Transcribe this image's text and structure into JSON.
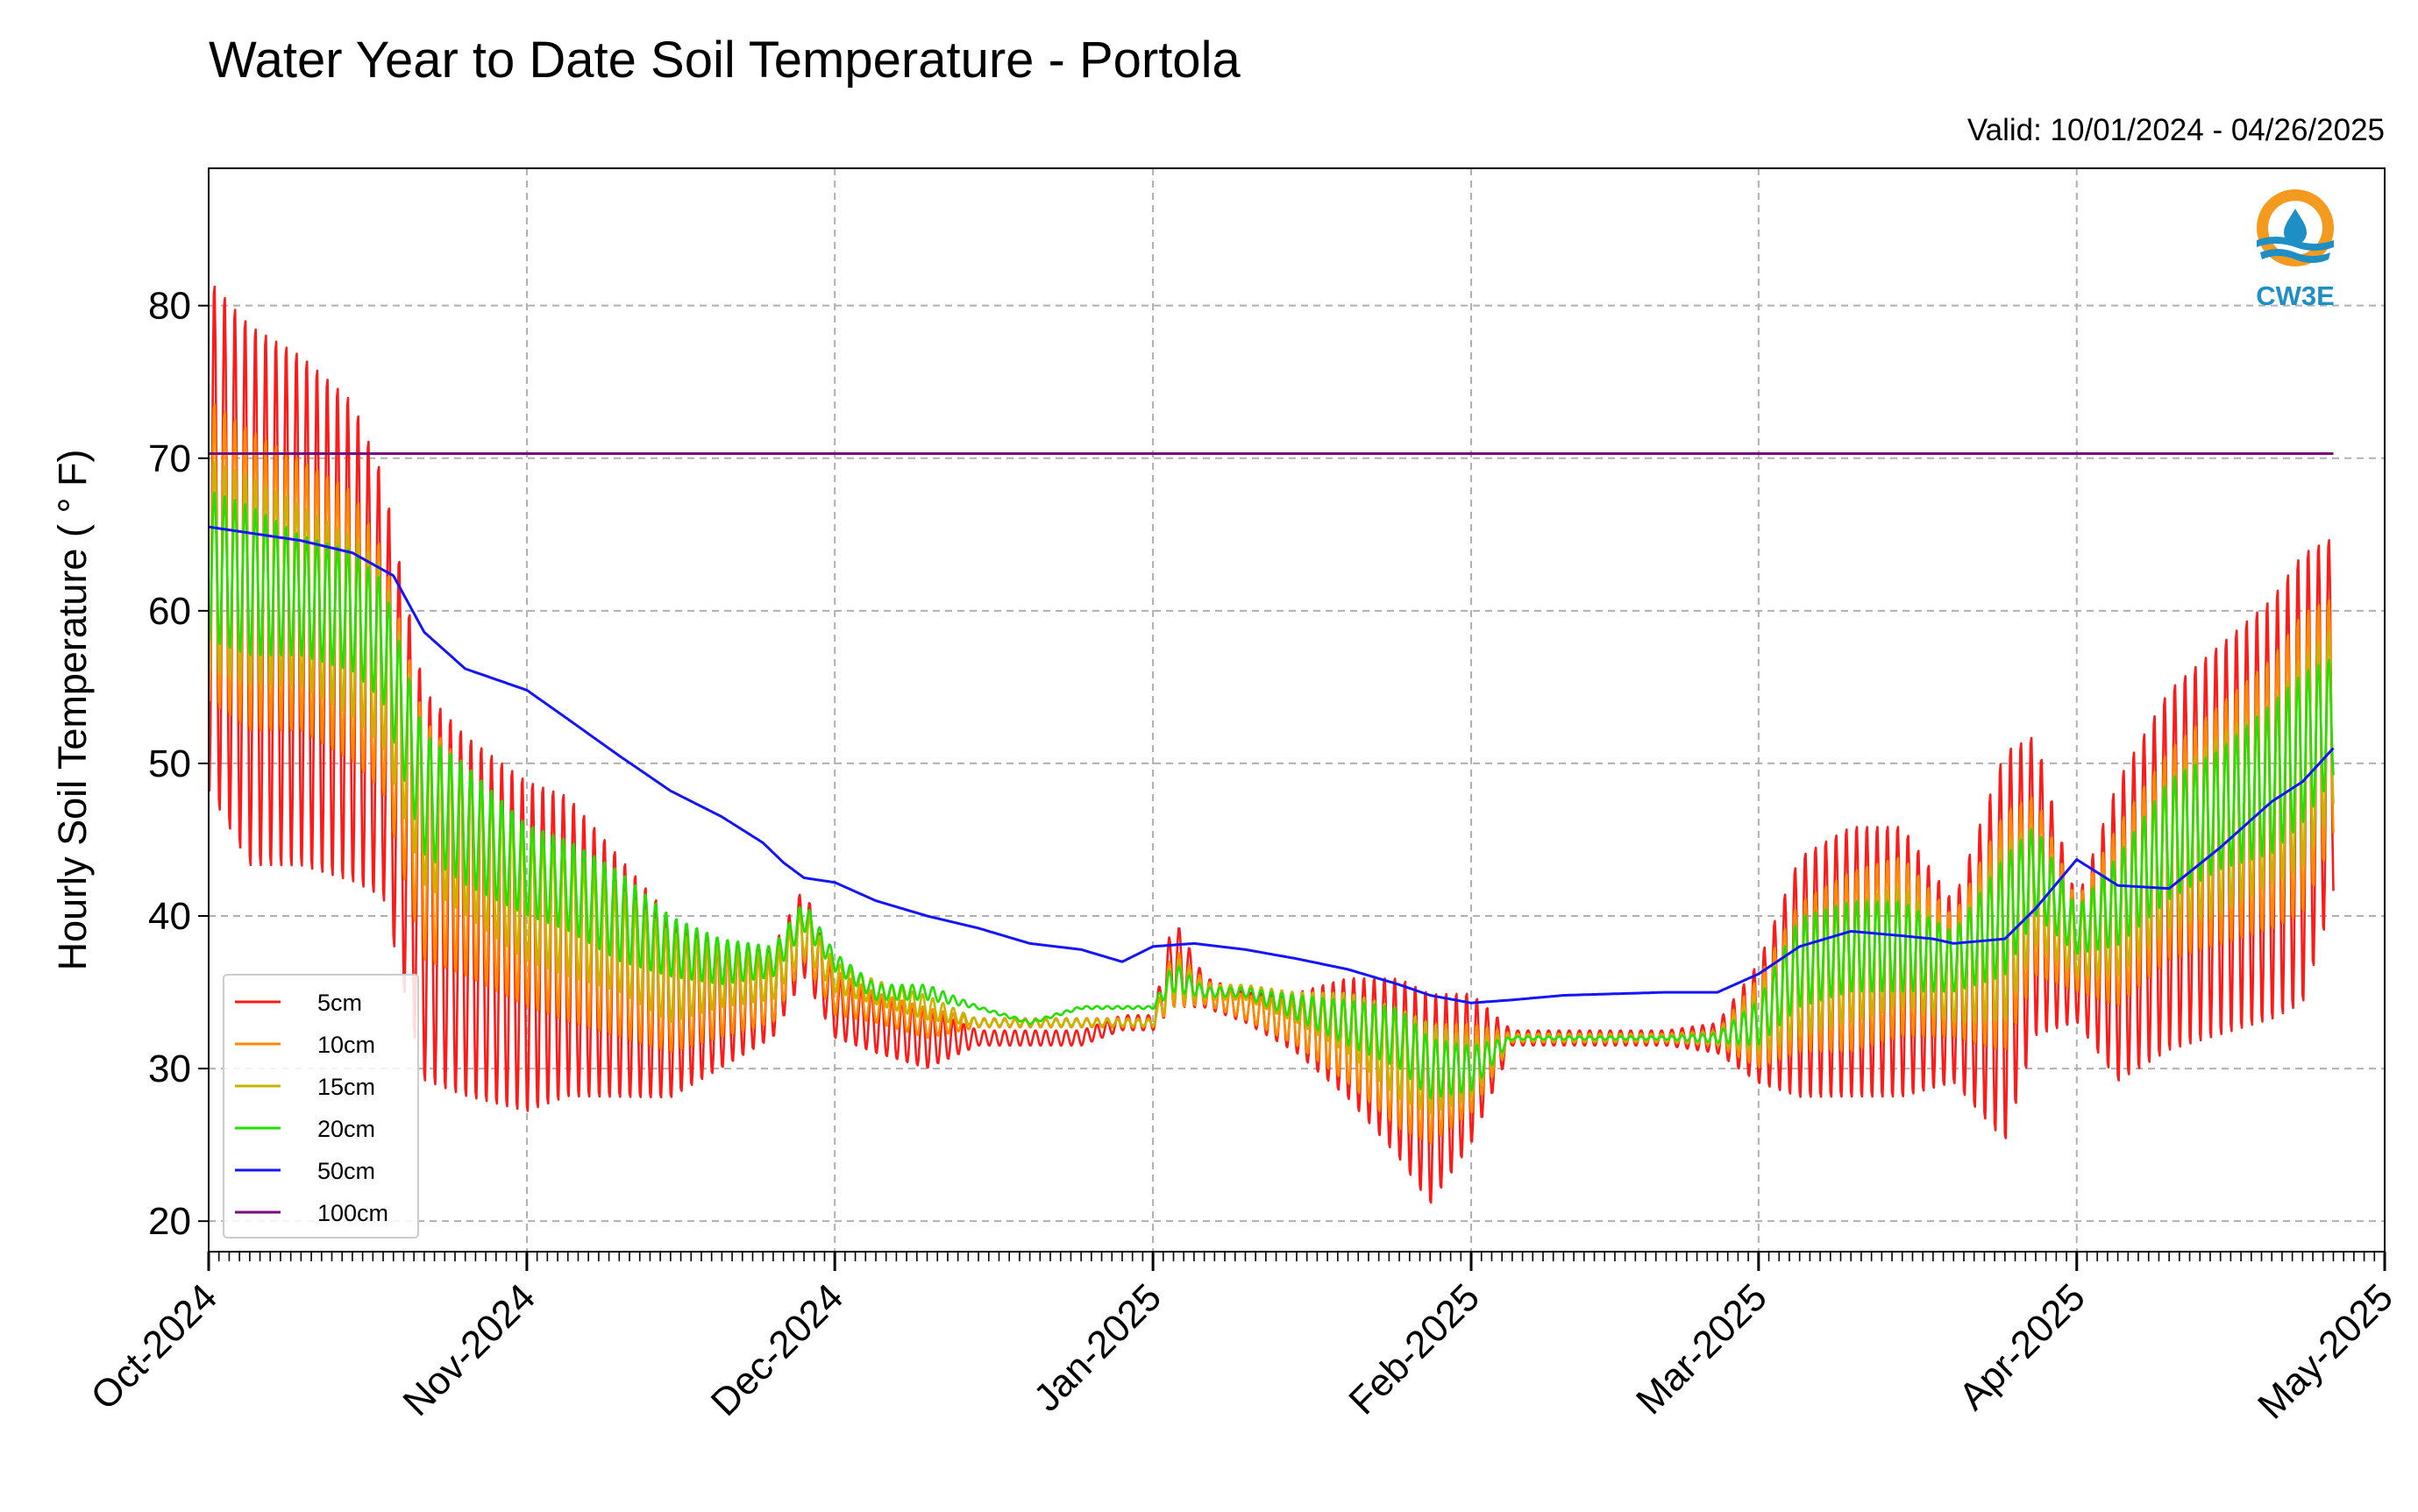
{
  "chart_data": {
    "type": "line",
    "title": "Water Year to Date Soil Temperature - Portola",
    "subtitle": "Valid: 10/01/2024 - 04/26/2025",
    "ylabel": "Hourly Soil Temperature ( ° F)",
    "xlabel": "",
    "ylim": [
      18,
      89
    ],
    "yticks": [
      20,
      30,
      40,
      50,
      60,
      70,
      80
    ],
    "xlim": [
      "2024-10-01",
      "2025-05-01"
    ],
    "xtick_labels": [
      "Oct-2024",
      "Nov-2024",
      "Dec-2024",
      "Jan-2025",
      "Feb-2025",
      "Mar-2025",
      "Apr-2025",
      "May-2025"
    ],
    "xtick_dates": [
      "2024-10-01",
      "2024-11-01",
      "2024-12-01",
      "2025-01-01",
      "2025-02-01",
      "2025-03-01",
      "2025-04-01",
      "2025-05-01"
    ],
    "grid": true,
    "legend_position": "lower-left",
    "series": [
      {
        "name": "5cm",
        "color": "#ff1a1a",
        "x": [
          "2024-10-01",
          "2024-10-05",
          "2024-10-10",
          "2024-10-15",
          "2024-10-18",
          "2024-10-22",
          "2024-10-26",
          "2024-11-01",
          "2024-11-05",
          "2024-11-10",
          "2024-11-15",
          "2024-11-20",
          "2024-11-25",
          "2024-11-28",
          "2024-12-01",
          "2024-12-05",
          "2024-12-10",
          "2024-12-15",
          "2024-12-20",
          "2024-12-25",
          "2024-12-29",
          "2025-01-01",
          "2025-01-03",
          "2025-01-06",
          "2025-01-10",
          "2025-01-15",
          "2025-01-20",
          "2025-01-25",
          "2025-01-28",
          "2025-02-01",
          "2025-02-05",
          "2025-02-10",
          "2025-02-15",
          "2025-02-20",
          "2025-02-25",
          "2025-03-01",
          "2025-03-05",
          "2025-03-10",
          "2025-03-15",
          "2025-03-20",
          "2025-03-25",
          "2025-03-28",
          "2025-04-01",
          "2025-04-05",
          "2025-04-10",
          "2025-04-15",
          "2025-04-20",
          "2025-04-23",
          "2025-04-26"
        ],
        "values": [
          65,
          61,
          60,
          58,
          55,
          42,
          40,
          38,
          38,
          36,
          34,
          34,
          35,
          39,
          34,
          33,
          32,
          32,
          32,
          32,
          33,
          33,
          37,
          35,
          34,
          33,
          32,
          30,
          28,
          30,
          32,
          32,
          32,
          32,
          32,
          33,
          36,
          37,
          37,
          35,
          38,
          42,
          37,
          39,
          43,
          45,
          47,
          49,
          53
        ],
        "amplitude": [
          17,
          18,
          17,
          16,
          14,
          13,
          12,
          11,
          10,
          8,
          6,
          4,
          3,
          3,
          2,
          2,
          2,
          0.5,
          0.5,
          0.5,
          0.5,
          0.5,
          3,
          1,
          1,
          2,
          4,
          6,
          7,
          5,
          0.5,
          0.5,
          0.5,
          0.5,
          1,
          4,
          8,
          9,
          9,
          6,
          13,
          10,
          4,
          10,
          12,
          13,
          14,
          15,
          12
        ]
      },
      {
        "name": "10cm",
        "color": "#ff8c00",
        "x": [
          "2024-10-01",
          "2024-10-05",
          "2024-10-10",
          "2024-10-15",
          "2024-10-18",
          "2024-10-22",
          "2024-10-26",
          "2024-11-01",
          "2024-11-05",
          "2024-11-10",
          "2024-11-15",
          "2024-11-20",
          "2024-11-25",
          "2024-11-28",
          "2024-12-01",
          "2024-12-05",
          "2024-12-10",
          "2024-12-15",
          "2024-12-20",
          "2024-12-25",
          "2024-12-29",
          "2025-01-01",
          "2025-01-03",
          "2025-01-06",
          "2025-01-10",
          "2025-01-15",
          "2025-01-20",
          "2025-01-25",
          "2025-01-28",
          "2025-02-01",
          "2025-02-05",
          "2025-02-10",
          "2025-02-15",
          "2025-02-20",
          "2025-02-25",
          "2025-03-01",
          "2025-03-05",
          "2025-03-10",
          "2025-03-15",
          "2025-03-20",
          "2025-03-25",
          "2025-03-28",
          "2025-04-01",
          "2025-04-05",
          "2025-04-10",
          "2025-04-15",
          "2025-04-20",
          "2025-04-23",
          "2025-04-26"
        ],
        "values": [
          64,
          62,
          61,
          59,
          56,
          45,
          43,
          40,
          39,
          37,
          35,
          35,
          35,
          39,
          35,
          34,
          33,
          33,
          33,
          33,
          33,
          33,
          36,
          35,
          34,
          33,
          32,
          30,
          29,
          30,
          32,
          32,
          32,
          32,
          32,
          33,
          36,
          37,
          38,
          36,
          39,
          42,
          38,
          40,
          44,
          46,
          48,
          50,
          53
        ],
        "amplitude": [
          10,
          10,
          9,
          9,
          8,
          8,
          7,
          6,
          6,
          5,
          4,
          3,
          2,
          2,
          1.5,
          1,
          1,
          0.3,
          0.3,
          0.3,
          0.3,
          0.3,
          2,
          0.8,
          0.8,
          1.5,
          3,
          4,
          4,
          3,
          0.3,
          0.3,
          0.3,
          0.3,
          0.5,
          3,
          5,
          6,
          6,
          4,
          8,
          6,
          3,
          6,
          7,
          8,
          9,
          10,
          8
        ]
      },
      {
        "name": "15cm",
        "color": "#c8b400",
        "x": [
          "2024-10-01",
          "2024-10-05",
          "2024-10-10",
          "2024-10-15",
          "2024-10-18",
          "2024-10-22",
          "2024-10-26",
          "2024-11-01",
          "2024-11-05",
          "2024-11-10",
          "2024-11-15",
          "2024-11-20",
          "2024-11-25",
          "2024-11-28",
          "2024-12-01",
          "2024-12-05",
          "2024-12-10",
          "2024-12-15",
          "2024-12-20",
          "2024-12-25",
          "2024-12-29",
          "2025-01-01",
          "2025-01-03",
          "2025-01-06",
          "2025-01-10",
          "2025-01-15",
          "2025-01-20",
          "2025-01-25",
          "2025-01-28",
          "2025-02-01",
          "2025-02-05",
          "2025-02-10",
          "2025-02-15",
          "2025-02-20",
          "2025-02-25",
          "2025-03-01",
          "2025-03-05",
          "2025-03-10",
          "2025-03-15",
          "2025-03-20",
          "2025-03-25",
          "2025-03-28",
          "2025-04-01",
          "2025-04-05",
          "2025-04-10",
          "2025-04-15",
          "2025-04-20",
          "2025-04-23",
          "2025-04-26"
        ],
        "values": [
          63,
          62,
          61,
          59,
          57,
          47,
          45,
          41,
          40,
          38,
          36,
          36,
          36,
          39,
          36,
          35,
          34,
          33,
          33,
          33,
          33,
          33,
          36,
          35,
          35,
          34,
          33,
          31,
          30,
          30,
          32,
          32,
          32,
          32,
          32,
          33,
          36,
          37,
          38,
          36,
          39,
          42,
          38,
          40,
          44,
          46,
          48,
          50,
          53
        ],
        "amplitude": [
          7,
          7,
          6,
          6,
          6,
          5,
          5,
          4,
          4,
          3,
          3,
          2,
          1.5,
          1.5,
          1,
          0.8,
          0.8,
          0.2,
          0.2,
          0.2,
          0.2,
          0.2,
          1.5,
          0.5,
          0.5,
          1,
          2,
          3,
          3,
          2,
          0.2,
          0.2,
          0.2,
          0.2,
          0.4,
          2,
          4,
          4,
          4,
          3,
          6,
          4,
          2,
          4,
          5,
          6,
          6,
          7,
          6
        ]
      },
      {
        "name": "20cm",
        "color": "#22e000",
        "x": [
          "2024-10-01",
          "2024-10-05",
          "2024-10-10",
          "2024-10-15",
          "2024-10-18",
          "2024-10-22",
          "2024-10-26",
          "2024-11-01",
          "2024-11-05",
          "2024-11-10",
          "2024-11-15",
          "2024-11-20",
          "2024-11-25",
          "2024-11-28",
          "2024-12-01",
          "2024-12-05",
          "2024-12-10",
          "2024-12-15",
          "2024-12-20",
          "2024-12-25",
          "2024-12-29",
          "2025-01-01",
          "2025-01-03",
          "2025-01-06",
          "2025-01-10",
          "2025-01-15",
          "2025-01-20",
          "2025-01-25",
          "2025-01-28",
          "2025-02-01",
          "2025-02-05",
          "2025-02-10",
          "2025-02-15",
          "2025-02-20",
          "2025-02-25",
          "2025-03-01",
          "2025-03-05",
          "2025-03-10",
          "2025-03-15",
          "2025-03-20",
          "2025-03-25",
          "2025-03-28",
          "2025-04-01",
          "2025-04-05",
          "2025-04-10",
          "2025-04-15",
          "2025-04-20",
          "2025-04-23",
          "2025-04-26"
        ],
        "values": [
          63,
          62,
          61,
          60,
          58,
          48,
          46,
          43,
          42,
          40,
          38,
          37,
          37,
          40,
          37,
          35,
          35,
          34,
          33,
          34,
          34,
          34,
          36,
          35,
          35,
          34,
          33,
          32,
          30,
          30,
          32,
          32,
          32,
          32,
          32,
          33,
          37,
          38,
          38,
          37,
          40,
          43,
          39,
          41,
          45,
          47,
          49,
          51,
          53
        ],
        "amplitude": [
          5,
          5,
          4,
          4,
          4,
          4,
          4,
          3,
          3,
          3,
          2,
          1.5,
          1,
          1,
          0.6,
          0.5,
          0.5,
          0.1,
          0.1,
          0.1,
          0.1,
          0.1,
          1,
          0.3,
          0.3,
          0.8,
          1.5,
          2,
          2,
          1.5,
          0.1,
          0.1,
          0.1,
          0.1,
          0.3,
          1.5,
          3,
          3,
          3,
          2,
          4,
          3,
          1.5,
          3,
          4,
          4,
          5,
          5,
          4
        ]
      },
      {
        "name": "50cm",
        "color": "#1414ff",
        "x": [
          "2024-10-01",
          "2024-10-05",
          "2024-10-10",
          "2024-10-15",
          "2024-10-19",
          "2024-10-22",
          "2024-10-26",
          "2024-11-01",
          "2024-11-05",
          "2024-11-10",
          "2024-11-15",
          "2024-11-20",
          "2024-11-24",
          "2024-11-26",
          "2024-11-28",
          "2024-12-01",
          "2024-12-05",
          "2024-12-10",
          "2024-12-15",
          "2024-12-20",
          "2024-12-25",
          "2024-12-29",
          "2025-01-01",
          "2025-01-05",
          "2025-01-10",
          "2025-01-15",
          "2025-01-20",
          "2025-01-25",
          "2025-01-28",
          "2025-02-01",
          "2025-02-05",
          "2025-02-10",
          "2025-02-15",
          "2025-02-20",
          "2025-02-25",
          "2025-03-01",
          "2025-03-05",
          "2025-03-10",
          "2025-03-15",
          "2025-03-18",
          "2025-03-20",
          "2025-03-25",
          "2025-03-28",
          "2025-04-01",
          "2025-04-05",
          "2025-04-10",
          "2025-04-15",
          "2025-04-20",
          "2025-04-23",
          "2025-04-26"
        ],
        "values": [
          65.5,
          65.1,
          64.6,
          63.8,
          62.3,
          58.6,
          56.2,
          54.8,
          52.9,
          50.5,
          48.2,
          46.5,
          44.8,
          43.5,
          42.5,
          42.2,
          41.0,
          40.0,
          39.2,
          38.2,
          37.8,
          37.0,
          38.0,
          38.2,
          37.8,
          37.2,
          36.5,
          35.5,
          34.8,
          34.3,
          34.5,
          34.8,
          34.9,
          35.0,
          35.0,
          36.2,
          38.0,
          39.0,
          38.7,
          38.5,
          38.2,
          38.5,
          40.5,
          43.7,
          42.0,
          41.8,
          44.5,
          47.5,
          48.8,
          51.0
        ],
        "amplitude": [
          0
        ]
      },
      {
        "name": "100cm",
        "color": "#7a0a7a",
        "x": [
          "2024-10-01",
          "2025-04-26"
        ],
        "values": [
          70.3,
          70.3
        ],
        "amplitude": [
          0
        ]
      }
    ]
  },
  "logo": {
    "text": "CW3E"
  }
}
